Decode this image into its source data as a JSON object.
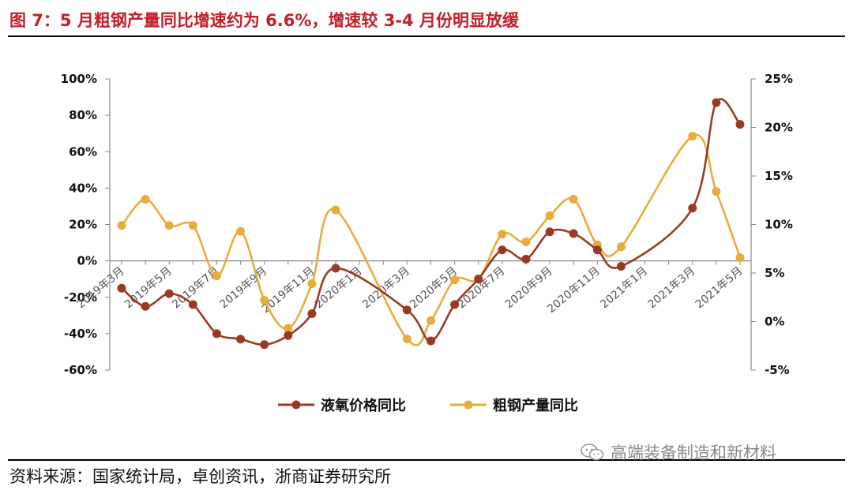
{
  "header": {
    "title": "图 7：5 月粗钢产量同比增速约为 6.6%，增速较 3-4 月份明显放缓"
  },
  "footer": {
    "source": "资料来源：国家统计局，卓创资讯，浙商证券研究所",
    "watermark": "高端装备制造和新材料"
  },
  "colors": {
    "series_oxygen": "#9b3a24",
    "series_steel": "#e6ad3e",
    "title": "#c0202a"
  },
  "icons": {
    "watermark_icon": "wechat-icon"
  },
  "chart_data": {
    "type": "line",
    "x": [
      "2019年3月",
      "2019年4月",
      "2019年5月",
      "2019年6月",
      "2019年7月",
      "2019年8月",
      "2019年9月",
      "2019年10月",
      "2019年11月",
      "2019年12月",
      "2020年1月",
      "2020年2月",
      "2020年3月",
      "2020年4月",
      "2020年5月",
      "2020年6月",
      "2020年7月",
      "2020年8月",
      "2020年9月",
      "2020年10月",
      "2020年11月",
      "2020年12月",
      "2021年1月",
      "2021年2月",
      "2021年3月",
      "2021年4月",
      "2021年5月"
    ],
    "x_tick_labels": [
      "2019年3月",
      "2019年5月",
      "2019年7月",
      "2019年9月",
      "2019年11月",
      "2020年1月",
      "2020年3月",
      "2020年5月",
      "2020年7月",
      "2020年9月",
      "2020年11月",
      "2021年1月",
      "2021年3月",
      "2021年5月"
    ],
    "y_left": {
      "ticks": [
        "100%",
        "80%",
        "60%",
        "40%",
        "20%",
        "0%",
        "-20%",
        "-40%",
        "-60%"
      ],
      "range": [
        -60,
        100
      ]
    },
    "y_right": {
      "ticks": [
        "25%",
        "20%",
        "15%",
        "10%",
        "5%",
        "0%",
        "-5%"
      ],
      "range": [
        -5,
        25
      ]
    },
    "series": [
      {
        "name": "液氧价格同比",
        "axis": "left",
        "points": [
          [
            0,
            -15
          ],
          [
            1,
            -25
          ],
          [
            2,
            -18
          ],
          [
            3,
            -24
          ],
          [
            4,
            -40
          ],
          [
            5,
            -43
          ],
          [
            6,
            -46
          ],
          [
            7,
            -41
          ],
          [
            8,
            -29
          ],
          [
            9,
            -4
          ],
          [
            12,
            -27
          ],
          [
            13,
            -44
          ],
          [
            14,
            -24
          ],
          [
            15,
            -10
          ],
          [
            16,
            6
          ],
          [
            17,
            1
          ],
          [
            18,
            16
          ],
          [
            19,
            15
          ],
          [
            20,
            6
          ],
          [
            21,
            -3
          ],
          [
            24,
            29
          ],
          [
            25,
            87
          ],
          [
            26,
            75
          ]
        ]
      },
      {
        "name": "粗钢产量同比",
        "axis": "right",
        "points": [
          [
            0,
            9.9
          ],
          [
            1,
            12.6
          ],
          [
            2,
            9.9
          ],
          [
            3,
            9.9
          ],
          [
            4,
            4.7
          ],
          [
            5,
            9.3
          ],
          [
            6,
            2.2
          ],
          [
            7,
            -0.7
          ],
          [
            8,
            3.9
          ],
          [
            9,
            11.5
          ],
          [
            12,
            -1.8
          ],
          [
            13,
            0.1
          ],
          [
            14,
            4.3
          ],
          [
            15,
            4.4
          ],
          [
            16,
            9.0
          ],
          [
            17,
            8.2
          ],
          [
            18,
            10.9
          ],
          [
            19,
            12.6
          ],
          [
            20,
            7.9
          ],
          [
            21,
            7.7
          ],
          [
            24,
            19.1
          ],
          [
            25,
            13.4
          ],
          [
            26,
            6.6
          ]
        ]
      }
    ],
    "legend": {
      "position": "bottom"
    },
    "grid": false
  }
}
